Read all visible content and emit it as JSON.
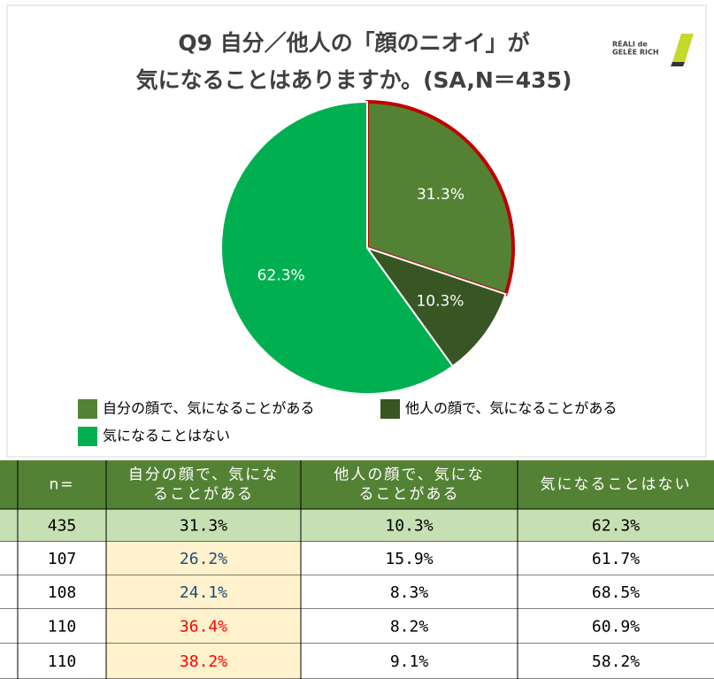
{
  "chart_data": {
    "type": "pie",
    "title": [
      "Q9 自分／他人の「顔のニオイ」が",
      "気になることはありますか。(SA,N＝435)"
    ],
    "logo": [
      "RÉALI de",
      "GELÉE RICH"
    ],
    "categories": [
      "自分の顔で、気になることがある",
      "他人の顔で、気になることがある",
      "気になることはない"
    ],
    "values": [
      31.3,
      10.3,
      62.3
    ],
    "value_labels": [
      "31.3%",
      "10.3%",
      "62.3%"
    ],
    "colors": [
      "#548235",
      "#375623",
      "#00b050"
    ],
    "highlight_index": 0,
    "highlight_color": "#c00000"
  },
  "table": {
    "header": [
      [
        "n="
      ],
      [
        "自分の顔で、気にな",
        "ることがある"
      ],
      [
        "他人の顔で、気にな",
        "ることがある"
      ],
      [
        "気になることはない"
      ]
    ],
    "rows": [
      [
        "435",
        "31.3%",
        "10.3%",
        "62.3%"
      ],
      [
        "107",
        "26.2%",
        "15.9%",
        "61.7%"
      ],
      [
        "108",
        "24.1%",
        "8.3%",
        "68.5%"
      ],
      [
        "110",
        "36.4%",
        "8.2%",
        "60.9%"
      ],
      [
        "110",
        "38.2%",
        "9.1%",
        "58.2%"
      ]
    ],
    "row_fills": [
      "#c6e0b4",
      "#ffffff",
      "#ffffff",
      "#ffffff",
      "#ffffff"
    ],
    "highlight_column": 1,
    "highlight_fill": "#fff2cc",
    "highlight_text_colors": [
      "#000000",
      "#1f4e79",
      "#1f4e79",
      "#ff0000",
      "#ff0000"
    ]
  }
}
